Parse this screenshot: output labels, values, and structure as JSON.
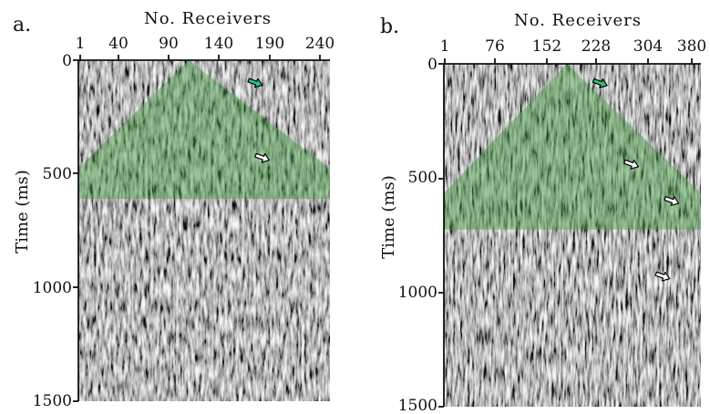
{
  "panels": [
    {
      "letter": "a.",
      "xlabel": "No. Receivers",
      "ylabel": "Time (ms)",
      "xticks": [
        "1",
        "40",
        "90",
        "140",
        "190",
        "240"
      ],
      "yticks": [
        "0",
        "500",
        "1000",
        "1500"
      ],
      "xlim": [
        1,
        250
      ],
      "ylim": [
        0,
        1500
      ],
      "mask": {
        "apex_receiver": 110,
        "apex_time": 0,
        "left_receiver": 1,
        "right_receiver": 250,
        "base_time": 610
      },
      "arrows": [
        {
          "color": "green",
          "receiver": 183,
          "time": 110
        },
        {
          "color": "white",
          "receiver": 190,
          "time": 440
        }
      ]
    },
    {
      "letter": "b.",
      "xlabel": "No. Receivers",
      "ylabel": "Time (ms)",
      "xticks": [
        "1",
        "76",
        "152",
        "228",
        "304",
        "380"
      ],
      "yticks": [
        "0",
        "500",
        "1000",
        "1500"
      ],
      "xlim": [
        1,
        396
      ],
      "ylim": [
        0,
        1500
      ],
      "mask": {
        "apex_receiver": 190,
        "apex_time": 0,
        "left_receiver": 1,
        "right_receiver": 396,
        "base_time": 725
      },
      "arrows": [
        {
          "color": "green",
          "receiver": 252,
          "time": 95
        },
        {
          "color": "white",
          "receiver": 300,
          "time": 450
        },
        {
          "color": "white",
          "receiver": 362,
          "time": 610
        },
        {
          "color": "white",
          "receiver": 348,
          "time": 940
        }
      ]
    }
  ],
  "colors": {
    "mask_fill": "#3f9a3f",
    "green_arrow": "#2ec27e",
    "white_arrow": "#ffffff",
    "seismic_bg": "#8f8f8f"
  }
}
